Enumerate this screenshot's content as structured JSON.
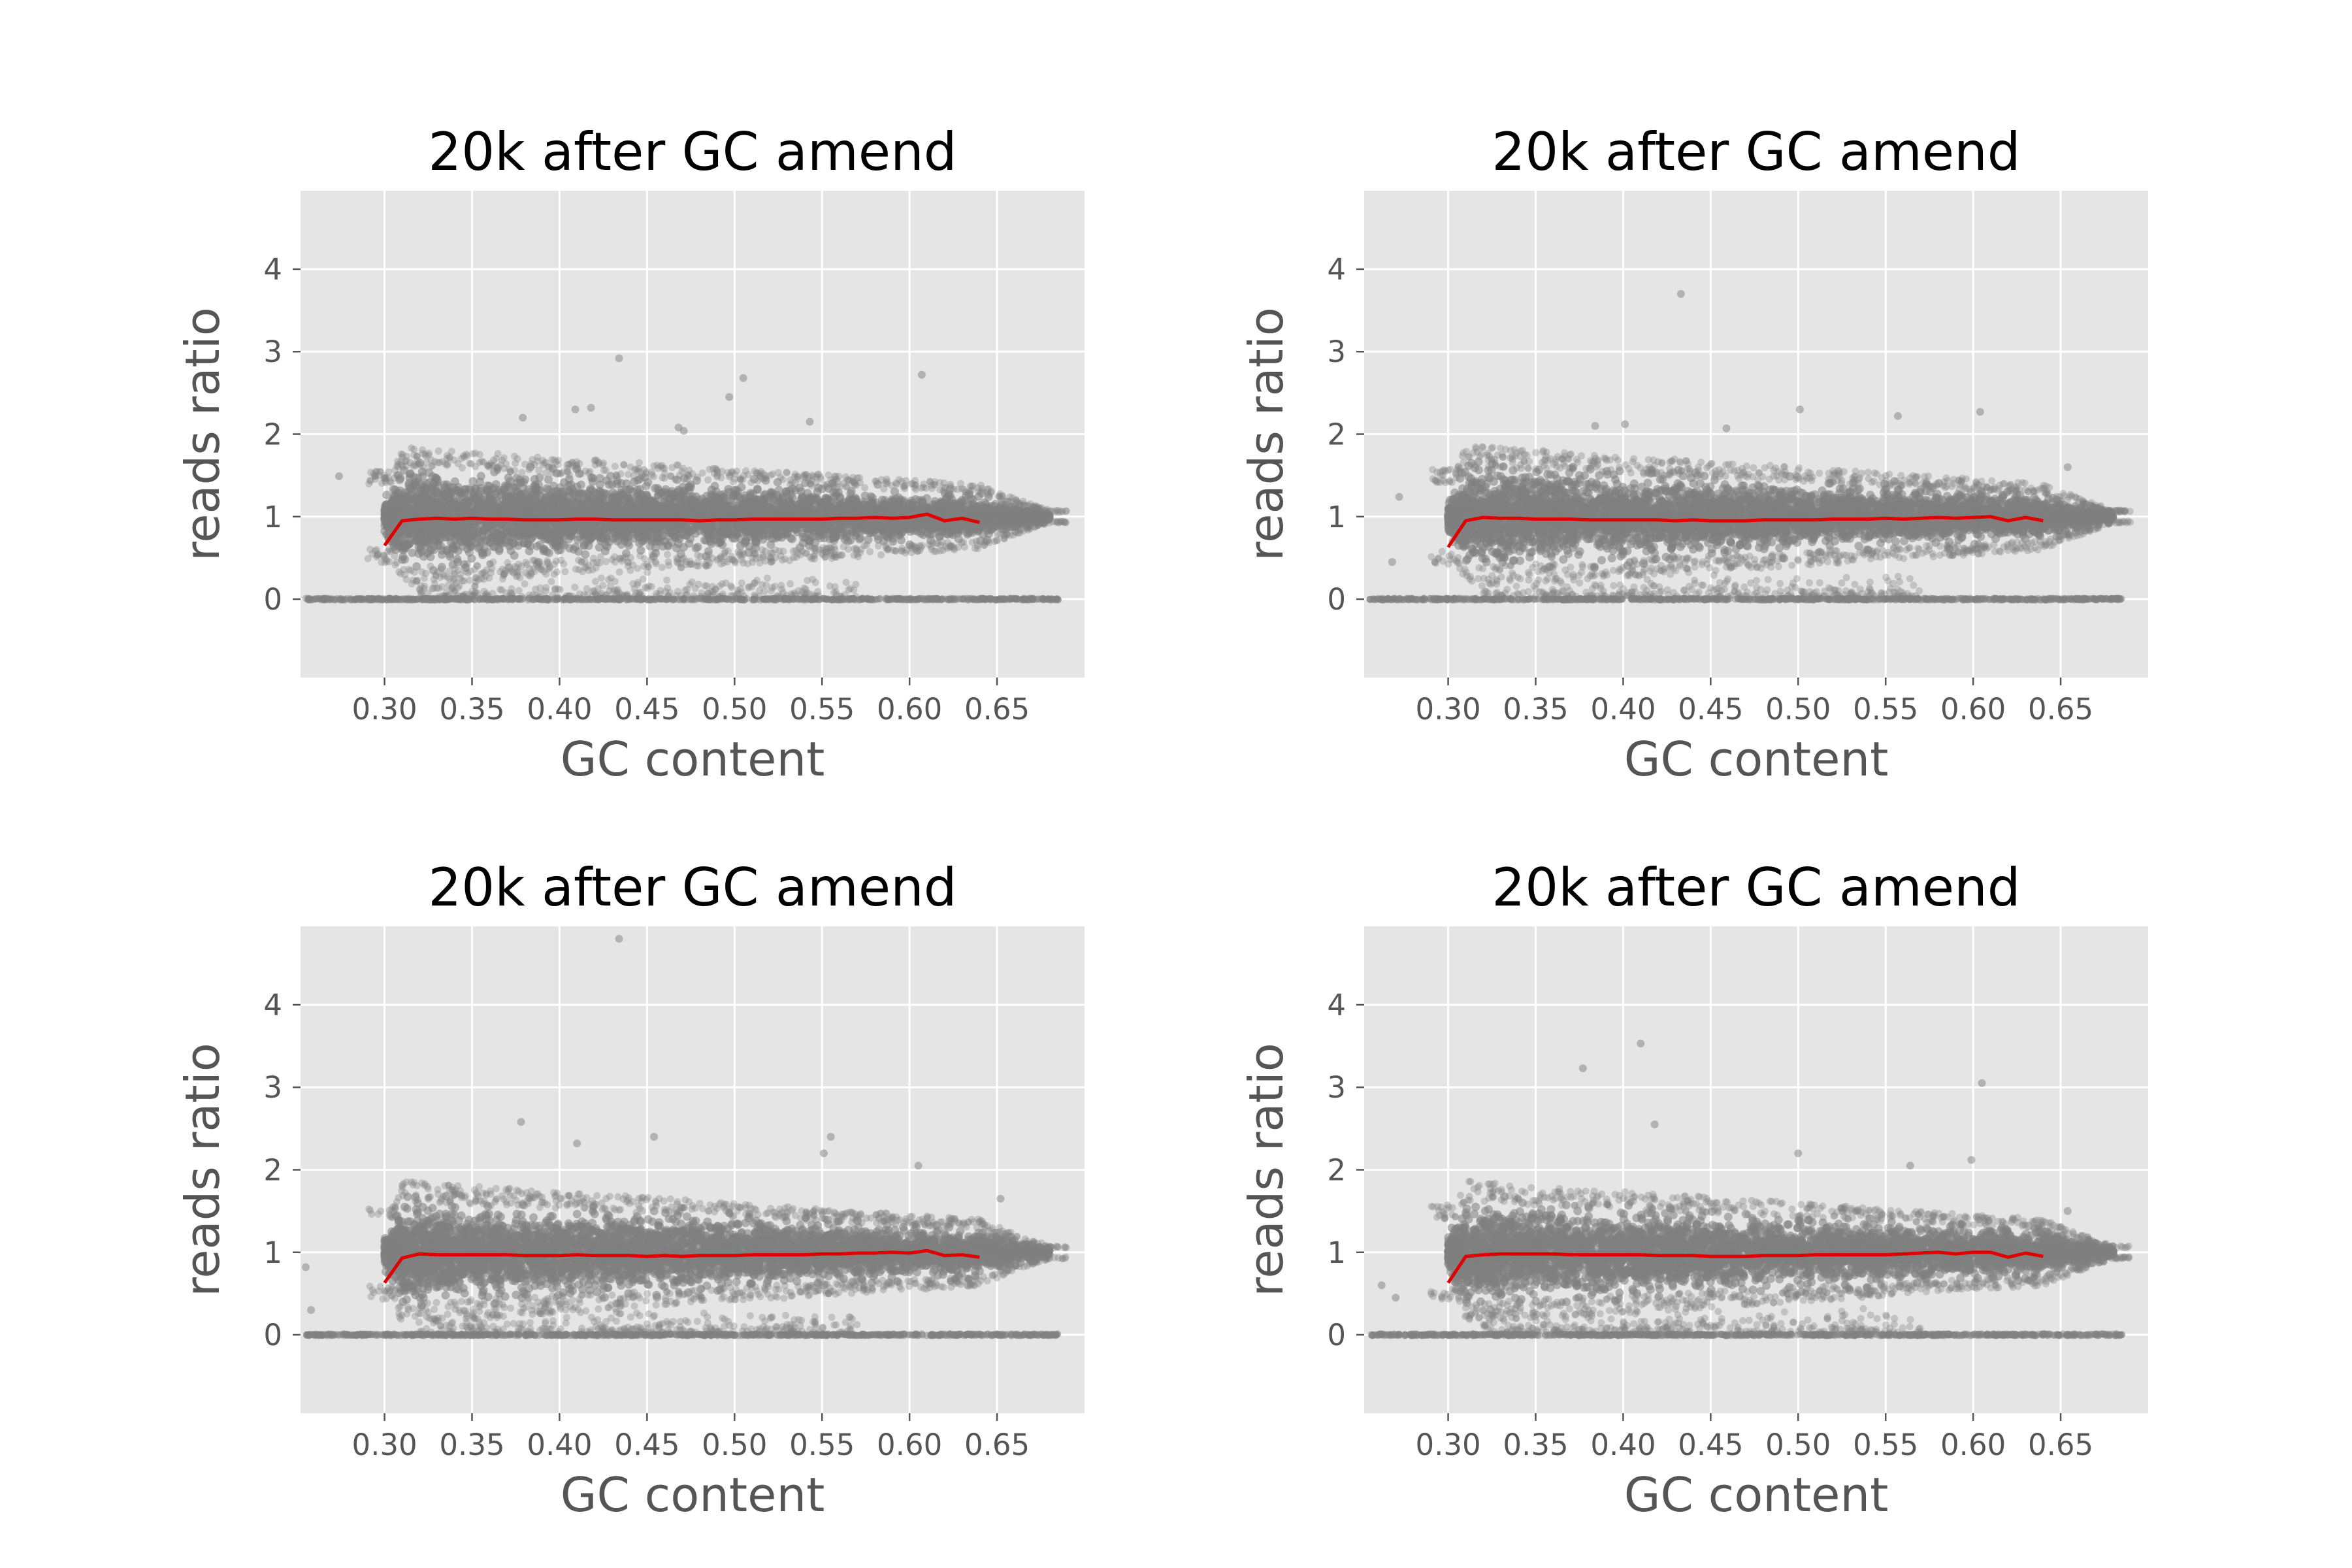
{
  "chart_data": [
    {
      "type": "scatter",
      "title": "20k after GC amend",
      "xlabel": "GC content",
      "ylabel": "reads ratio",
      "xlim": [
        0.252,
        0.7
      ],
      "ylim": [
        -0.95,
        4.95
      ],
      "xticks": [
        "0.30",
        "0.35",
        "0.40",
        "0.45",
        "0.50",
        "0.55",
        "0.60",
        "0.65"
      ],
      "yticks": [
        "0",
        "1",
        "2",
        "3",
        "4"
      ],
      "grid": true,
      "colors": {
        "points": "#808080",
        "trend": "#e00000",
        "background": "#e5e5e5"
      },
      "cloud": {
        "x_range": [
          0.3,
          0.68
        ],
        "center": 1.0,
        "max_spread": 0.7,
        "zero_row_x_range": [
          0.255,
          0.685
        ]
      },
      "outliers": [
        {
          "x": 0.434,
          "y": 2.92
        },
        {
          "x": 0.505,
          "y": 2.68
        },
        {
          "x": 0.607,
          "y": 2.72
        },
        {
          "x": 0.497,
          "y": 2.45
        },
        {
          "x": 0.418,
          "y": 2.32
        },
        {
          "x": 0.409,
          "y": 2.3
        },
        {
          "x": 0.379,
          "y": 2.2
        },
        {
          "x": 0.543,
          "y": 2.15
        },
        {
          "x": 0.471,
          "y": 2.04
        },
        {
          "x": 0.468,
          "y": 2.08
        },
        {
          "x": 0.274,
          "y": 1.49
        }
      ],
      "trend": {
        "x": [
          0.3,
          0.31,
          0.32,
          0.33,
          0.34,
          0.35,
          0.36,
          0.37,
          0.38,
          0.39,
          0.4,
          0.41,
          0.42,
          0.43,
          0.44,
          0.45,
          0.46,
          0.47,
          0.48,
          0.49,
          0.5,
          0.51,
          0.52,
          0.53,
          0.54,
          0.55,
          0.56,
          0.57,
          0.58,
          0.59,
          0.6,
          0.61,
          0.62,
          0.63,
          0.64
        ],
        "y": [
          0.65,
          0.95,
          0.97,
          0.98,
          0.97,
          0.98,
          0.97,
          0.97,
          0.96,
          0.96,
          0.96,
          0.97,
          0.97,
          0.96,
          0.96,
          0.96,
          0.96,
          0.96,
          0.95,
          0.96,
          0.96,
          0.97,
          0.97,
          0.97,
          0.97,
          0.97,
          0.98,
          0.98,
          0.99,
          0.98,
          0.99,
          1.03,
          0.95,
          0.98,
          0.93
        ]
      }
    },
    {
      "type": "scatter",
      "title": "20k after GC amend",
      "xlabel": "GC content",
      "ylabel": "reads ratio",
      "xlim": [
        0.252,
        0.7
      ],
      "ylim": [
        -0.95,
        4.95
      ],
      "xticks": [
        "0.30",
        "0.35",
        "0.40",
        "0.45",
        "0.50",
        "0.55",
        "0.60",
        "0.65"
      ],
      "yticks": [
        "0",
        "1",
        "2",
        "3",
        "4"
      ],
      "grid": true,
      "colors": {
        "points": "#808080",
        "trend": "#e00000",
        "background": "#e5e5e5"
      },
      "cloud": {
        "x_range": [
          0.3,
          0.68
        ],
        "center": 1.0,
        "max_spread": 0.72,
        "zero_row_x_range": [
          0.255,
          0.685
        ]
      },
      "outliers": [
        {
          "x": 0.433,
          "y": 3.7
        },
        {
          "x": 0.501,
          "y": 2.3
        },
        {
          "x": 0.604,
          "y": 2.27
        },
        {
          "x": 0.557,
          "y": 2.22
        },
        {
          "x": 0.384,
          "y": 2.1
        },
        {
          "x": 0.401,
          "y": 2.12
        },
        {
          "x": 0.459,
          "y": 2.07
        },
        {
          "x": 0.654,
          "y": 1.6
        },
        {
          "x": 0.272,
          "y": 1.24
        },
        {
          "x": 0.268,
          "y": 0.45
        }
      ],
      "trend": {
        "x": [
          0.3,
          0.31,
          0.32,
          0.33,
          0.34,
          0.35,
          0.36,
          0.37,
          0.38,
          0.39,
          0.4,
          0.41,
          0.42,
          0.43,
          0.44,
          0.45,
          0.46,
          0.47,
          0.48,
          0.49,
          0.5,
          0.51,
          0.52,
          0.53,
          0.54,
          0.55,
          0.56,
          0.57,
          0.58,
          0.59,
          0.6,
          0.61,
          0.62,
          0.63,
          0.64
        ],
        "y": [
          0.63,
          0.95,
          0.99,
          0.98,
          0.98,
          0.97,
          0.97,
          0.97,
          0.96,
          0.96,
          0.96,
          0.96,
          0.96,
          0.95,
          0.96,
          0.95,
          0.95,
          0.95,
          0.96,
          0.96,
          0.96,
          0.96,
          0.97,
          0.97,
          0.97,
          0.98,
          0.97,
          0.98,
          0.99,
          0.98,
          0.99,
          1.0,
          0.95,
          0.99,
          0.95
        ]
      }
    },
    {
      "type": "scatter",
      "title": "20k after GC amend",
      "xlabel": "GC content",
      "ylabel": "reads ratio",
      "xlim": [
        0.252,
        0.7
      ],
      "ylim": [
        -0.95,
        4.95
      ],
      "xticks": [
        "0.30",
        "0.35",
        "0.40",
        "0.45",
        "0.50",
        "0.55",
        "0.60",
        "0.65"
      ],
      "yticks": [
        "0",
        "1",
        "2",
        "3",
        "4"
      ],
      "grid": true,
      "colors": {
        "points": "#808080",
        "trend": "#e00000",
        "background": "#e5e5e5"
      },
      "cloud": {
        "x_range": [
          0.3,
          0.68
        ],
        "center": 1.0,
        "max_spread": 0.72,
        "zero_row_x_range": [
          0.255,
          0.685
        ]
      },
      "outliers": [
        {
          "x": 0.434,
          "y": 4.8
        },
        {
          "x": 0.378,
          "y": 2.58
        },
        {
          "x": 0.41,
          "y": 2.32
        },
        {
          "x": 0.454,
          "y": 2.4
        },
        {
          "x": 0.555,
          "y": 2.4
        },
        {
          "x": 0.551,
          "y": 2.2
        },
        {
          "x": 0.605,
          "y": 2.05
        },
        {
          "x": 0.652,
          "y": 1.65
        },
        {
          "x": 0.255,
          "y": 0.82
        },
        {
          "x": 0.258,
          "y": 0.3
        }
      ],
      "trend": {
        "x": [
          0.3,
          0.31,
          0.32,
          0.33,
          0.34,
          0.35,
          0.36,
          0.37,
          0.38,
          0.39,
          0.4,
          0.41,
          0.42,
          0.43,
          0.44,
          0.45,
          0.46,
          0.47,
          0.48,
          0.49,
          0.5,
          0.51,
          0.52,
          0.53,
          0.54,
          0.55,
          0.56,
          0.57,
          0.58,
          0.59,
          0.6,
          0.61,
          0.62,
          0.63,
          0.64
        ],
        "y": [
          0.63,
          0.93,
          0.98,
          0.97,
          0.97,
          0.97,
          0.97,
          0.97,
          0.96,
          0.96,
          0.96,
          0.97,
          0.96,
          0.96,
          0.96,
          0.95,
          0.96,
          0.95,
          0.96,
          0.96,
          0.96,
          0.97,
          0.97,
          0.97,
          0.97,
          0.98,
          0.98,
          0.99,
          0.99,
          1.0,
          0.99,
          1.02,
          0.96,
          0.97,
          0.94
        ]
      }
    },
    {
      "type": "scatter",
      "title": "20k after GC amend",
      "xlabel": "GC content",
      "ylabel": "reads ratio",
      "xlim": [
        0.252,
        0.7
      ],
      "ylim": [
        -0.95,
        4.95
      ],
      "xticks": [
        "0.30",
        "0.35",
        "0.40",
        "0.45",
        "0.50",
        "0.55",
        "0.60",
        "0.65"
      ],
      "yticks": [
        "0",
        "1",
        "2",
        "3",
        "4"
      ],
      "grid": true,
      "colors": {
        "points": "#808080",
        "trend": "#e00000",
        "background": "#e5e5e5"
      },
      "cloud": {
        "x_range": [
          0.3,
          0.68
        ],
        "center": 1.0,
        "max_spread": 0.72,
        "zero_row_x_range": [
          0.255,
          0.685
        ]
      },
      "outliers": [
        {
          "x": 0.41,
          "y": 3.53
        },
        {
          "x": 0.377,
          "y": 3.23
        },
        {
          "x": 0.605,
          "y": 3.05
        },
        {
          "x": 0.418,
          "y": 2.55
        },
        {
          "x": 0.5,
          "y": 2.2
        },
        {
          "x": 0.564,
          "y": 2.05
        },
        {
          "x": 0.599,
          "y": 2.12
        },
        {
          "x": 0.654,
          "y": 1.5
        },
        {
          "x": 0.27,
          "y": 0.45
        },
        {
          "x": 0.262,
          "y": 0.6
        }
      ],
      "trend": {
        "x": [
          0.3,
          0.31,
          0.32,
          0.33,
          0.34,
          0.35,
          0.36,
          0.37,
          0.38,
          0.39,
          0.4,
          0.41,
          0.42,
          0.43,
          0.44,
          0.45,
          0.46,
          0.47,
          0.48,
          0.49,
          0.5,
          0.51,
          0.52,
          0.53,
          0.54,
          0.55,
          0.56,
          0.57,
          0.58,
          0.59,
          0.6,
          0.61,
          0.62,
          0.63,
          0.64
        ],
        "y": [
          0.63,
          0.95,
          0.97,
          0.98,
          0.98,
          0.98,
          0.98,
          0.97,
          0.97,
          0.97,
          0.97,
          0.97,
          0.96,
          0.96,
          0.96,
          0.95,
          0.95,
          0.95,
          0.96,
          0.96,
          0.96,
          0.97,
          0.97,
          0.97,
          0.97,
          0.97,
          0.98,
          0.99,
          1.0,
          0.98,
          1.0,
          1.0,
          0.94,
          0.99,
          0.95
        ]
      }
    }
  ]
}
